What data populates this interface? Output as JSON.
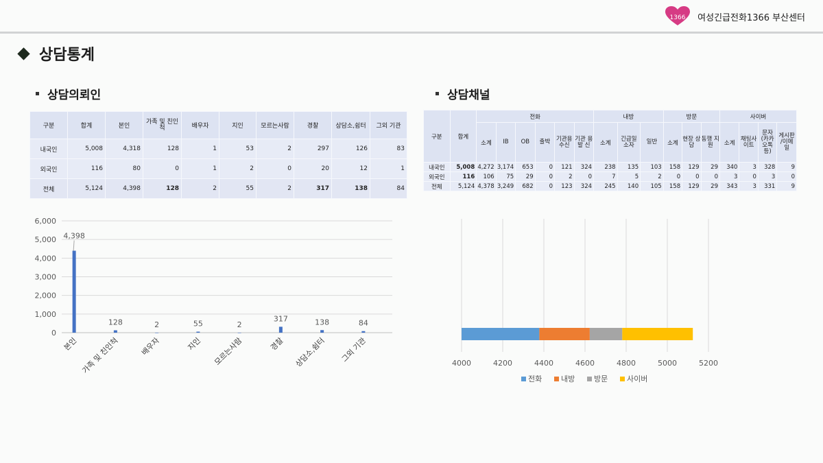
{
  "header": {
    "logo_text": "1366",
    "org_name": "여성긴급전화1366 부산센터",
    "brand_color": "#d63b84"
  },
  "page_title": "상담통계",
  "section_left": {
    "title": "상담의뢰인"
  },
  "section_right": {
    "title": "상담채널"
  },
  "table_left": {
    "columns": [
      "구분",
      "합계",
      "본인",
      "가족 및 친인척",
      "배우자",
      "지인",
      "모르는사람",
      "경찰",
      "상담소,쉼터",
      "그외 기관"
    ],
    "rows": [
      {
        "label": "내국인",
        "values": [
          "5,008",
          "4,318",
          "128",
          "1",
          "53",
          "2",
          "297",
          "126",
          "83"
        ]
      },
      {
        "label": "외국인",
        "values": [
          "116",
          "80",
          "0",
          "1",
          "2",
          "0",
          "20",
          "12",
          "1"
        ]
      },
      {
        "label": "전체",
        "values": [
          "5,124",
          "4,398",
          "128",
          "2",
          "55",
          "2",
          "317",
          "138",
          "84"
        ]
      }
    ]
  },
  "table_right": {
    "col_group": "구분",
    "col_total": "합계",
    "groups": [
      "전화",
      "내방",
      "방문",
      "사이버"
    ],
    "subcolumns": [
      "소계",
      "IB",
      "OB",
      "출박",
      "기관용 수신",
      "기관 용발 신",
      "소계",
      "긴급일 소자",
      "일반",
      "소계",
      "현장 상담",
      "동행 지원",
      "소계",
      "채팅사 이트",
      "문자 (카카 오톡등)",
      "게시판 /이메 일"
    ],
    "rows": [
      {
        "label": "내국인",
        "values": [
          "5,008",
          "4,272",
          "3,174",
          "653",
          "0",
          "121",
          "324",
          "238",
          "135",
          "103",
          "158",
          "129",
          "29",
          "340",
          "3",
          "328",
          "9"
        ]
      },
      {
        "label": "외국인",
        "values": [
          "116",
          "106",
          "75",
          "29",
          "0",
          "2",
          "0",
          "7",
          "5",
          "2",
          "0",
          "0",
          "0",
          "3",
          "0",
          "3",
          "0"
        ]
      },
      {
        "label": "전체",
        "values": [
          "5,124",
          "4,378",
          "3,249",
          "682",
          "0",
          "123",
          "324",
          "245",
          "140",
          "105",
          "158",
          "129",
          "29",
          "343",
          "3",
          "331",
          "9"
        ]
      }
    ]
  },
  "chart_data": [
    {
      "type": "bar",
      "categories": [
        "본인",
        "가족 및 친인척",
        "배우자",
        "지인",
        "모르는사람",
        "경찰",
        "상담소,쉼터",
        "그외 기관"
      ],
      "values": [
        4398,
        128,
        2,
        55,
        2,
        317,
        138,
        84
      ],
      "data_labels": [
        "4,398",
        "128",
        "2",
        "55",
        "2",
        "317",
        "138",
        "84"
      ],
      "ylim": [
        0,
        6000
      ],
      "yticks": [
        "0",
        "1,000",
        "2,000",
        "3,000",
        "4,000",
        "5,000",
        "6,000"
      ],
      "grid": true,
      "color": "#4472c4"
    },
    {
      "type": "bar",
      "orientation": "horizontal",
      "stacked": true,
      "series": [
        {
          "name": "전화",
          "value": 4378,
          "color": "#5b9bd5"
        },
        {
          "name": "내방",
          "value": 245,
          "color": "#ed7d31"
        },
        {
          "name": "방문",
          "value": 158,
          "color": "#a5a5a5"
        },
        {
          "name": "사이버",
          "value": 343,
          "color": "#ffc000"
        }
      ],
      "xlim": [
        4000,
        5200
      ],
      "xticks": [
        "4000",
        "4200",
        "4400",
        "4600",
        "4800",
        "5000",
        "5200"
      ],
      "grid": true,
      "legend": "bottom"
    }
  ]
}
